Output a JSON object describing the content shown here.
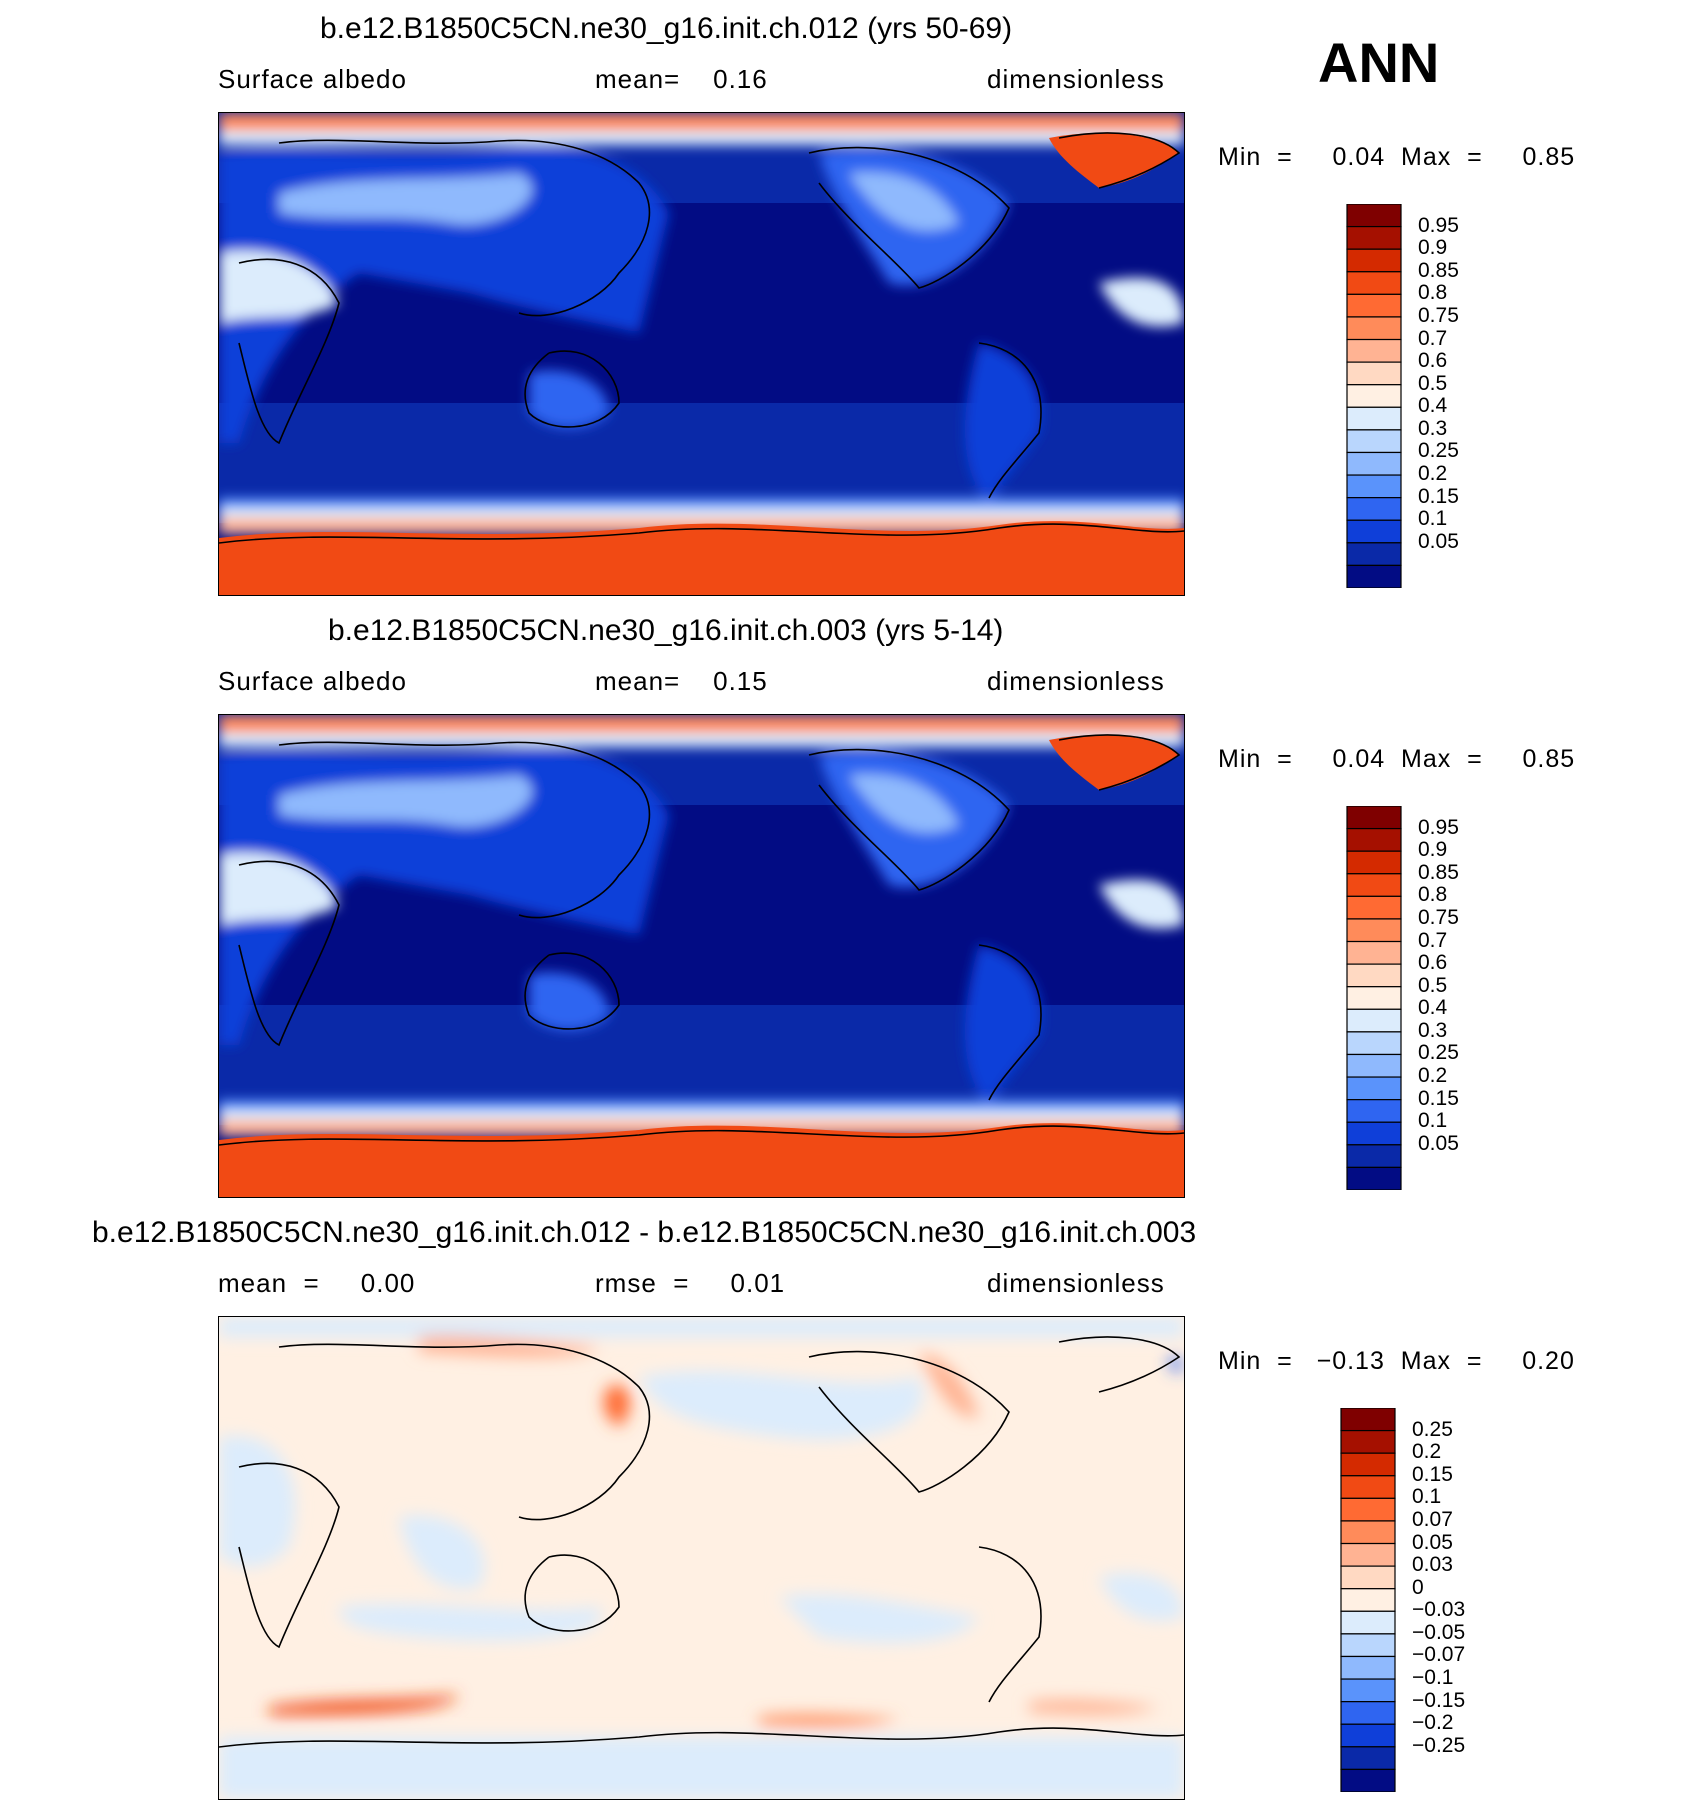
{
  "season": "ANN",
  "panels": [
    {
      "title": "b.e12.B1850C5CN.ne30_g16.init.ch.012 (yrs 50-69)",
      "left": "Surface  albedo",
      "middle": "mean=    0.16",
      "right": "dimensionless",
      "minmax": "Min  =     0.04  Max  =     0.85"
    },
    {
      "title": "b.e12.B1850C5CN.ne30_g16.init.ch.003 (yrs 5-14)",
      "left": "Surface  albedo",
      "middle": "mean=    0.15",
      "right": "dimensionless",
      "minmax": "Min  =     0.04  Max  =     0.85"
    },
    {
      "title": "b.e12.B1850C5CN.ne30_g16.init.ch.012 - b.e12.B1850C5CN.ne30_g16.init.ch.003",
      "left": "mean  =     0.00",
      "middle": "rmse  =     0.01",
      "right": "dimensionless",
      "minmax": "Min  =   −0.13  Max  =     0.20"
    }
  ],
  "chart_data": [
    {
      "type": "heatmap",
      "title": "b.e12.B1850C5CN.ne30_g16.init.ch.012 (yrs 50-69)",
      "variable": "Surface  albedo",
      "units": "dimensionless",
      "mean": 0.16,
      "min": 0.04,
      "max": 0.85,
      "colorbar": {
        "levels": [
          "0.95",
          "0.9",
          "0.85",
          "0.8",
          "0.75",
          "0.7",
          "0.6",
          "0.5",
          "0.4",
          "0.3",
          "0.25",
          "0.2",
          "0.15",
          "0.1",
          "0.05"
        ],
        "colors": [
          "#7f0000",
          "#a51000",
          "#d42a00",
          "#f14a14",
          "#ff6a33",
          "#ff8b5a",
          "#ffb393",
          "#ffd9c2",
          "#fff0e3",
          "#dcecfc",
          "#b9d6fd",
          "#8fb9fd",
          "#5a93fb",
          "#2f65f1",
          "#0f3fd9",
          "#0a29a8",
          "#020c84"
        ]
      }
    },
    {
      "type": "heatmap",
      "title": "b.e12.B1850C5CN.ne30_g16.init.ch.003 (yrs 5-14)",
      "variable": "Surface  albedo",
      "units": "dimensionless",
      "mean": 0.15,
      "min": 0.04,
      "max": 0.85,
      "colorbar": {
        "levels": [
          "0.95",
          "0.9",
          "0.85",
          "0.8",
          "0.75",
          "0.7",
          "0.6",
          "0.5",
          "0.4",
          "0.3",
          "0.25",
          "0.2",
          "0.15",
          "0.1",
          "0.05"
        ],
        "colors": [
          "#7f0000",
          "#a51000",
          "#d42a00",
          "#f14a14",
          "#ff6a33",
          "#ff8b5a",
          "#ffb393",
          "#ffd9c2",
          "#fff0e3",
          "#dcecfc",
          "#b9d6fd",
          "#8fb9fd",
          "#5a93fb",
          "#2f65f1",
          "#0f3fd9",
          "#0a29a8",
          "#020c84"
        ]
      }
    },
    {
      "type": "heatmap",
      "title": "b.e12.B1850C5CN.ne30_g16.init.ch.012 - b.e12.B1850C5CN.ne30_g16.init.ch.003",
      "units": "dimensionless",
      "mean": 0.0,
      "rmse": 0.01,
      "min": -0.13,
      "max": 0.2,
      "colorbar": {
        "levels": [
          "0.25",
          "0.2",
          "0.15",
          "0.1",
          "0.07",
          "0.05",
          "0.03",
          "0",
          "−0.03",
          "−0.05",
          "−0.07",
          "−0.1",
          "−0.15",
          "−0.2",
          "−0.25"
        ],
        "colors": [
          "#7f0000",
          "#a51000",
          "#d42a00",
          "#f14a14",
          "#ff6a33",
          "#ff8b5a",
          "#ffb393",
          "#ffd9c2",
          "#fff0e3",
          "#dcecfc",
          "#b9d6fd",
          "#8fb9fd",
          "#5a93fb",
          "#2f65f1",
          "#0f3fd9",
          "#0a29a8",
          "#020c84"
        ]
      }
    }
  ]
}
